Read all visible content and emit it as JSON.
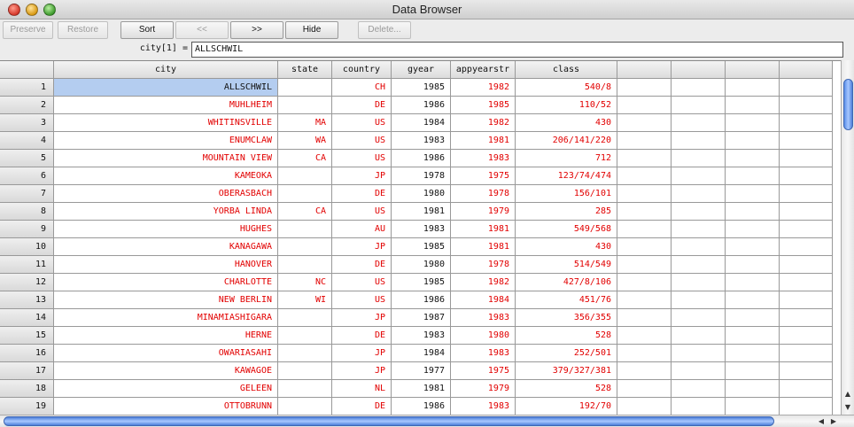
{
  "window": {
    "title": "Data Browser"
  },
  "toolbar": {
    "preserve": "Preserve",
    "restore": "Restore",
    "sort": "Sort",
    "prev": "<<",
    "next": ">>",
    "hide": "Hide",
    "delete": "Delete..."
  },
  "editor": {
    "label": "city[1] =",
    "value": "ALLSCHWIL"
  },
  "columns": [
    "city",
    "state",
    "country",
    "gyear",
    "appyearstr",
    "class",
    "",
    "",
    "",
    ""
  ],
  "rows": [
    [
      "1",
      "ALLSCHWIL",
      "",
      "CH",
      "1985",
      "1982",
      "540/8"
    ],
    [
      "2",
      "MUHLHEIM",
      "",
      "DE",
      "1986",
      "1985",
      "110/52"
    ],
    [
      "3",
      "WHITINSVILLE",
      "MA",
      "US",
      "1984",
      "1982",
      "430"
    ],
    [
      "4",
      "ENUMCLAW",
      "WA",
      "US",
      "1983",
      "1981",
      "206/141/220"
    ],
    [
      "5",
      "MOUNTAIN VIEW",
      "CA",
      "US",
      "1986",
      "1983",
      "712"
    ],
    [
      "6",
      "KAMEOKA",
      "",
      "JP",
      "1978",
      "1975",
      "123/74/474"
    ],
    [
      "7",
      "OBERASBACH",
      "",
      "DE",
      "1980",
      "1978",
      "156/101"
    ],
    [
      "8",
      "YORBA LINDA",
      "CA",
      "US",
      "1981",
      "1979",
      "285"
    ],
    [
      "9",
      "HUGHES",
      "",
      "AU",
      "1983",
      "1981",
      "549/568"
    ],
    [
      "10",
      "KANAGAWA",
      "",
      "JP",
      "1985",
      "1981",
      "430"
    ],
    [
      "11",
      "HANOVER",
      "",
      "DE",
      "1980",
      "1978",
      "514/549"
    ],
    [
      "12",
      "CHARLOTTE",
      "NC",
      "US",
      "1985",
      "1982",
      "427/8/106"
    ],
    [
      "13",
      "NEW BERLIN",
      "WI",
      "US",
      "1986",
      "1984",
      "451/76"
    ],
    [
      "14",
      "MINAMIASHIGARA",
      "",
      "JP",
      "1987",
      "1983",
      "356/355"
    ],
    [
      "15",
      "HERNE",
      "",
      "DE",
      "1983",
      "1980",
      "528"
    ],
    [
      "16",
      "OWARIASAHI",
      "",
      "JP",
      "1984",
      "1983",
      "252/501"
    ],
    [
      "17",
      "KAWAGOE",
      "",
      "JP",
      "1977",
      "1975",
      "379/327/381"
    ],
    [
      "18",
      "GELEEN",
      "",
      "NL",
      "1981",
      "1979",
      "528"
    ],
    [
      "19",
      "OTTOBRUNN",
      "",
      "DE",
      "1986",
      "1983",
      "192/70"
    ]
  ],
  "colors": {
    "string_value": "#e20000",
    "numeric_value": "#111111",
    "selection": "#b4cdf0",
    "scroll_thumb": "#5a8ee8"
  },
  "icons": {
    "up_arrow": "scroll-up-icon",
    "down_arrow": "scroll-down-icon",
    "left_arrow": "scroll-left-icon",
    "right_arrow": "scroll-right-icon"
  }
}
